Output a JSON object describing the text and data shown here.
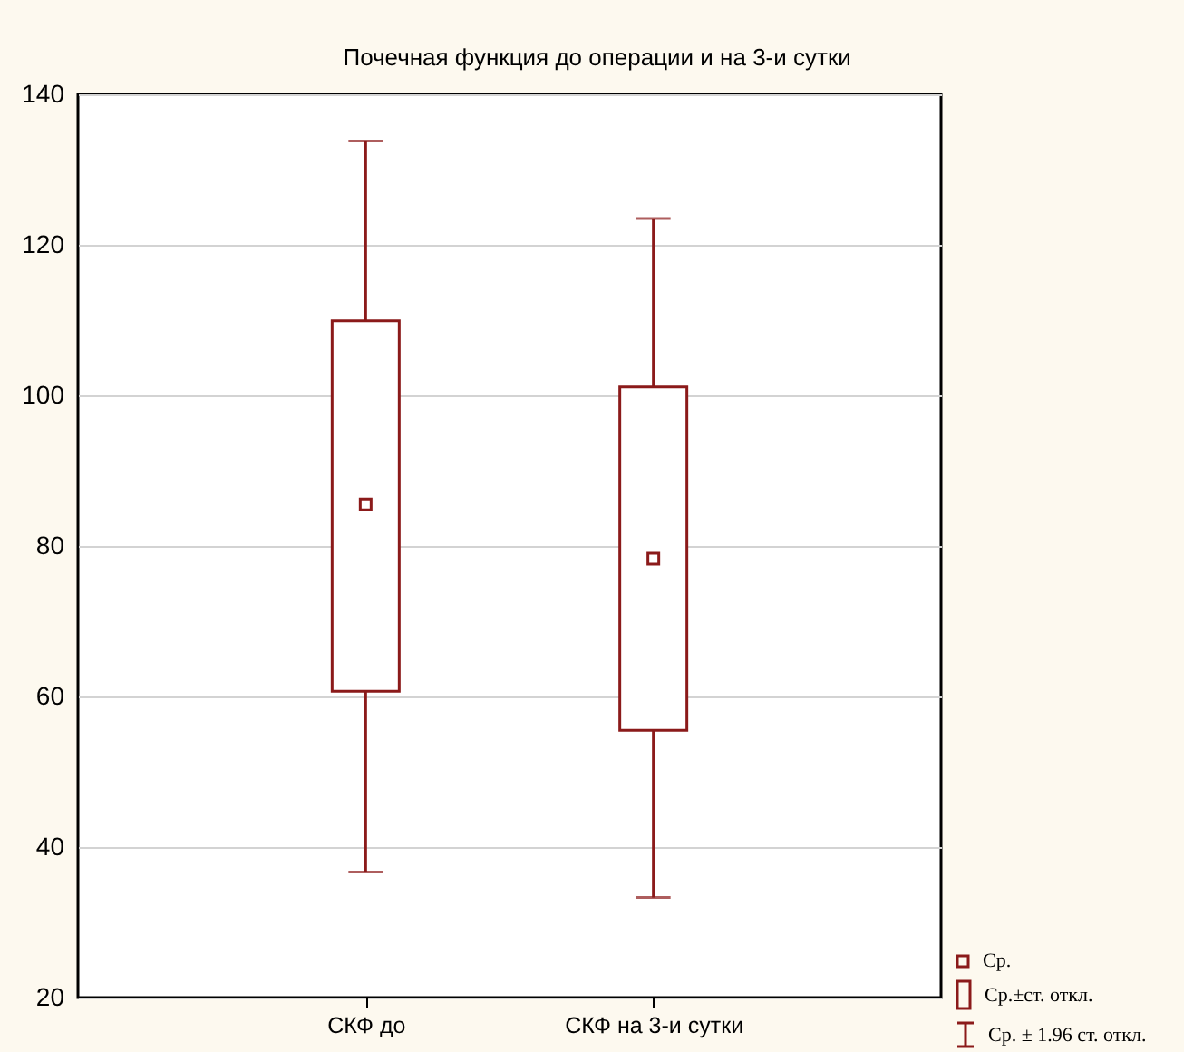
{
  "chart_data": {
    "type": "box",
    "title": "Почечная функция до операции и на 3-и сутки",
    "categories": [
      "СКФ до",
      "СКФ на 3-и сутки"
    ],
    "boxes": [
      {
        "low": 36.7,
        "q1": 60.7,
        "q3": 109.9,
        "high": 133.8,
        "mean": 85.5
      },
      {
        "low": 33.3,
        "q1": 55.5,
        "q3": 101.1,
        "high": 123.5,
        "mean": 78.3
      }
    ],
    "color": "#8b1a1a",
    "marker": "square",
    "ylim": [
      20,
      140
    ],
    "yticks": [
      20,
      40,
      60,
      80,
      100,
      120,
      140
    ],
    "grid": "y",
    "annotations": [
      "Ср.",
      "Ср.±ст. откл.",
      "Ср. ± 1.96 ст. откл."
    ]
  }
}
